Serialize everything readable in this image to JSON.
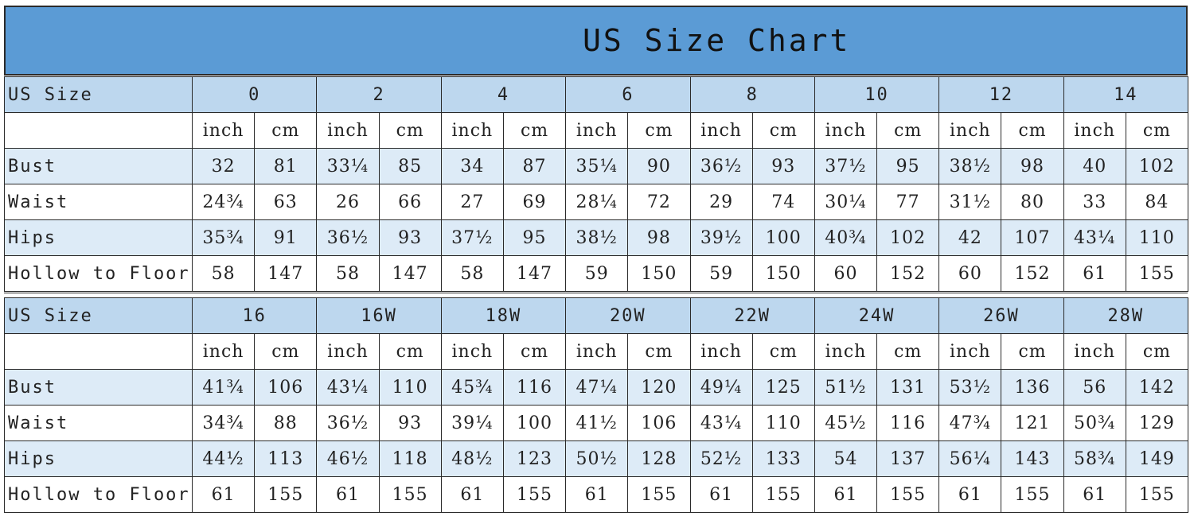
{
  "title": "US Size Chart",
  "units": [
    "inch",
    "cm"
  ],
  "tables": [
    {
      "header_label": "US Size",
      "sizes": [
        "0",
        "2",
        "4",
        "6",
        "8",
        "10",
        "12",
        "14"
      ],
      "rows": [
        {
          "label": "Bust",
          "values": [
            "32",
            "81",
            "33¼",
            "85",
            "34",
            "87",
            "35¼",
            "90",
            "36½",
            "93",
            "37½",
            "95",
            "38½",
            "98",
            "40",
            "102"
          ]
        },
        {
          "label": "Waist",
          "values": [
            "24¾",
            "63",
            "26",
            "66",
            "27",
            "69",
            "28¼",
            "72",
            "29",
            "74",
            "30¼",
            "77",
            "31½",
            "80",
            "33",
            "84"
          ]
        },
        {
          "label": "Hips",
          "values": [
            "35¾",
            "91",
            "36½",
            "93",
            "37½",
            "95",
            "38½",
            "98",
            "39½",
            "100",
            "40¾",
            "102",
            "42",
            "107",
            "43¼",
            "110"
          ]
        },
        {
          "label": "Hollow to Floor",
          "values": [
            "58",
            "147",
            "58",
            "147",
            "58",
            "147",
            "59",
            "150",
            "59",
            "150",
            "60",
            "152",
            "60",
            "152",
            "61",
            "155"
          ]
        }
      ]
    },
    {
      "header_label": "US Size",
      "sizes": [
        "16",
        "16W",
        "18W",
        "20W",
        "22W",
        "24W",
        "26W",
        "28W"
      ],
      "rows": [
        {
          "label": "Bust",
          "values": [
            "41¾",
            "106",
            "43¼",
            "110",
            "45¾",
            "116",
            "47¼",
            "120",
            "49¼",
            "125",
            "51½",
            "131",
            "53½",
            "136",
            "56",
            "142"
          ]
        },
        {
          "label": "Waist",
          "values": [
            "34¾",
            "88",
            "36½",
            "93",
            "39¼",
            "100",
            "41½",
            "106",
            "43¼",
            "110",
            "45½",
            "116",
            "47¾",
            "121",
            "50¾",
            "129"
          ]
        },
        {
          "label": "Hips",
          "values": [
            "44½",
            "113",
            "46½",
            "118",
            "48½",
            "123",
            "50½",
            "128",
            "52½",
            "133",
            "54",
            "137",
            "56¼",
            "143",
            "58¾",
            "149"
          ]
        },
        {
          "label": "Hollow to Floor",
          "values": [
            "61",
            "155",
            "61",
            "155",
            "61",
            "155",
            "61",
            "155",
            "61",
            "155",
            "61",
            "155",
            "61",
            "155",
            "61",
            "155"
          ]
        }
      ]
    }
  ],
  "colors": {
    "title_bar": "#5b9bd5",
    "header_row": "#bdd7ee",
    "light_row": "#ddebf7"
  }
}
